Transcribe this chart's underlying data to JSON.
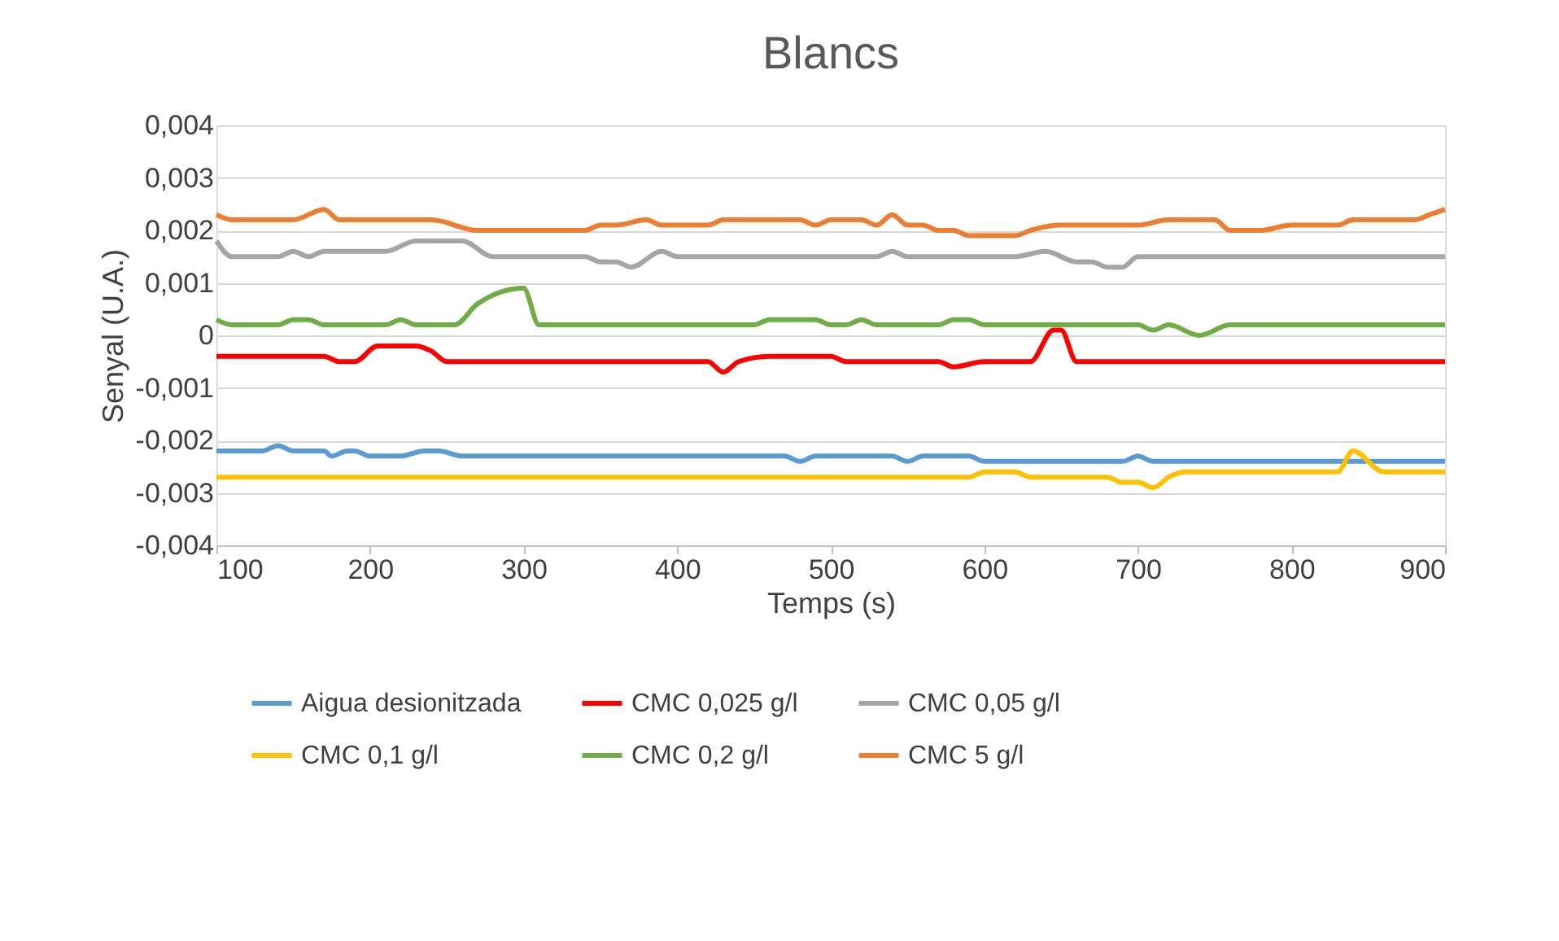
{
  "chart_data": {
    "type": "line",
    "title": "Blancs",
    "xlabel": "Temps (s)",
    "ylabel": "Senyal (U.A.)",
    "xlim": [
      100,
      900
    ],
    "xticks": [
      100,
      200,
      300,
      400,
      500,
      600,
      700,
      800,
      900
    ],
    "ylim": [
      -0.004,
      0.004
    ],
    "yticks": [
      {
        "value": -0.004,
        "label": "-0,004"
      },
      {
        "value": -0.003,
        "label": "-0,003"
      },
      {
        "value": -0.002,
        "label": "-0,002"
      },
      {
        "value": -0.001,
        "label": "-0,001"
      },
      {
        "value": 0,
        "label": "0"
      },
      {
        "value": 0.001,
        "label": "0,001"
      },
      {
        "value": 0.002,
        "label": "0,002"
      },
      {
        "value": 0.003,
        "label": "0,003"
      },
      {
        "value": 0.004,
        "label": "0,004"
      }
    ],
    "grid": "y",
    "legend": "bottom",
    "marker": "none",
    "line_style": "solid",
    "series": [
      {
        "name": "Aigua desionitzada",
        "color": "#5b9bd5",
        "x": [
          100,
          130,
          140,
          150,
          170,
          175,
          185,
          190,
          200,
          220,
          235,
          245,
          260,
          470,
          480,
          490,
          540,
          550,
          560,
          590,
          600,
          690,
          700,
          710,
          900
        ],
        "values": [
          -0.0022,
          -0.0022,
          -0.0021,
          -0.0022,
          -0.0022,
          -0.0023,
          -0.0022,
          -0.0022,
          -0.0023,
          -0.0023,
          -0.0022,
          -0.0022,
          -0.0023,
          -0.0023,
          -0.0024,
          -0.0023,
          -0.0023,
          -0.0024,
          -0.0023,
          -0.0023,
          -0.0024,
          -0.0024,
          -0.0023,
          -0.0024,
          -0.0024
        ]
      },
      {
        "name": "CMC 0,025 g/l",
        "color": "#ff0000",
        "x": [
          100,
          170,
          180,
          190,
          205,
          230,
          240,
          250,
          420,
          430,
          440,
          460,
          500,
          510,
          570,
          580,
          600,
          630,
          645,
          650,
          660,
          900
        ],
        "values": [
          -0.0004,
          -0.0004,
          -0.0005,
          -0.0005,
          -0.0002,
          -0.0002,
          -0.0003,
          -0.0005,
          -0.0005,
          -0.0007,
          -0.0005,
          -0.0004,
          -0.0004,
          -0.0005,
          -0.0005,
          -0.0006,
          -0.0005,
          -0.0005,
          0.0001,
          0.0001,
          -0.0005,
          -0.0005
        ]
      },
      {
        "name": "CMC 0,05 g/l",
        "color": "#a5a5a5",
        "x": [
          100,
          110,
          140,
          150,
          160,
          170,
          210,
          230,
          260,
          280,
          340,
          350,
          360,
          370,
          390,
          400,
          530,
          540,
          550,
          620,
          640,
          660,
          670,
          680,
          690,
          700,
          900
        ],
        "values": [
          0.0018,
          0.0015,
          0.0015,
          0.0016,
          0.0015,
          0.0016,
          0.0016,
          0.0018,
          0.0018,
          0.0015,
          0.0015,
          0.0014,
          0.0014,
          0.0013,
          0.0016,
          0.0015,
          0.0015,
          0.0016,
          0.0015,
          0.0015,
          0.0016,
          0.0014,
          0.0014,
          0.0013,
          0.0013,
          0.0015,
          0.0015
        ]
      },
      {
        "name": "CMC 0,1 g/l",
        "color": "#ffc000",
        "x": [
          100,
          590,
          600,
          620,
          630,
          680,
          690,
          700,
          710,
          720,
          730,
          830,
          840,
          860,
          900
        ],
        "values": [
          -0.0027,
          -0.0027,
          -0.0026,
          -0.0026,
          -0.0027,
          -0.0027,
          -0.0028,
          -0.0028,
          -0.0029,
          -0.0027,
          -0.0026,
          -0.0026,
          -0.0022,
          -0.0026,
          -0.0026
        ]
      },
      {
        "name": "CMC 0,2 g/l",
        "color": "#70ad47",
        "x": [
          100,
          110,
          140,
          150,
          160,
          170,
          210,
          220,
          230,
          255,
          270,
          300,
          310,
          450,
          460,
          490,
          500,
          510,
          520,
          530,
          570,
          580,
          590,
          600,
          700,
          710,
          720,
          740,
          760,
          900
        ],
        "values": [
          0.0003,
          0.0002,
          0.0002,
          0.0003,
          0.0003,
          0.0002,
          0.0002,
          0.0003,
          0.0002,
          0.0002,
          0.0006,
          0.0009,
          0.0002,
          0.0002,
          0.0003,
          0.0003,
          0.0002,
          0.0002,
          0.0003,
          0.0002,
          0.0002,
          0.0003,
          0.0003,
          0.0002,
          0.0002,
          0.0001,
          0.0002,
          0.0,
          0.0002,
          0.0002
        ]
      },
      {
        "name": "CMC 5 g/l",
        "color": "#ed7d31",
        "x": [
          100,
          110,
          150,
          170,
          180,
          240,
          270,
          340,
          350,
          360,
          380,
          390,
          420,
          430,
          480,
          490,
          500,
          520,
          530,
          540,
          550,
          560,
          570,
          580,
          590,
          620,
          630,
          650,
          700,
          720,
          750,
          760,
          780,
          800,
          830,
          840,
          880,
          890,
          900
        ],
        "values": [
          0.0023,
          0.0022,
          0.0022,
          0.0024,
          0.0022,
          0.0022,
          0.002,
          0.002,
          0.0021,
          0.0021,
          0.0022,
          0.0021,
          0.0021,
          0.0022,
          0.0022,
          0.0021,
          0.0022,
          0.0022,
          0.0021,
          0.0023,
          0.0021,
          0.0021,
          0.002,
          0.002,
          0.0019,
          0.0019,
          0.002,
          0.0021,
          0.0021,
          0.0022,
          0.0022,
          0.002,
          0.002,
          0.0021,
          0.0021,
          0.0022,
          0.0022,
          0.0023,
          0.0024
        ]
      }
    ]
  }
}
